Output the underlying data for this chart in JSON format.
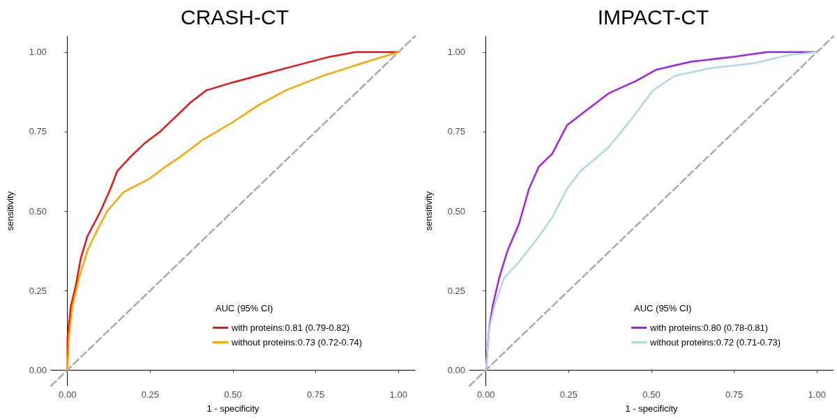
{
  "chart_data": [
    {
      "type": "line",
      "title": "CRASH-CT",
      "xlabel": "1 - specificity",
      "ylabel": "sensitivity",
      "legend_title": "AUC (95% CI)",
      "legend": "bottom right",
      "grid": false,
      "marker": "none",
      "xlim": [
        -0.05,
        1.05
      ],
      "ylim": [
        -0.05,
        1.05
      ],
      "xticks": [
        {
          "value": 0,
          "label": "0.00"
        },
        {
          "value": 0.25,
          "label": "0.25"
        },
        {
          "value": 0.5,
          "label": "0.50"
        },
        {
          "value": 0.75,
          "label": "0.75"
        },
        {
          "value": 1,
          "label": "1.00"
        }
      ],
      "yticks": [
        {
          "value": 0,
          "label": "0.00"
        },
        {
          "value": 0.25,
          "label": "0.25"
        },
        {
          "value": 0.5,
          "label": "0.50"
        },
        {
          "value": 0.75,
          "label": "0.75"
        },
        {
          "value": 1,
          "label": "1.00"
        }
      ],
      "series": [
        {
          "name": "with proteins:0.81 (0.79-0.82)",
          "color": "#ee1111",
          "line_style": "solid",
          "x": [
            0,
            0,
            0.01,
            0.025,
            0.04,
            0.06,
            0.08,
            0.1,
            0.13,
            0.15,
            0.19,
            0.235,
            0.28,
            0.33,
            0.37,
            0.42,
            0.5,
            0.59,
            0.68,
            0.79,
            0.87,
            1
          ],
          "values": [
            0,
            0.1,
            0.2,
            0.265,
            0.35,
            0.42,
            0.46,
            0.5,
            0.57,
            0.625,
            0.67,
            0.715,
            0.75,
            0.8,
            0.84,
            0.88,
            0.905,
            0.93,
            0.955,
            0.985,
            1,
            1
          ]
        },
        {
          "name": "without proteins:0.73 (0.72-0.74)",
          "color": "#ffa500",
          "line_style": "solid",
          "x": [
            0,
            0.005,
            0.015,
            0.035,
            0.06,
            0.09,
            0.12,
            0.17,
            0.245,
            0.29,
            0.34,
            0.41,
            0.5,
            0.58,
            0.66,
            0.77,
            0.89,
            1
          ],
          "values": [
            0,
            0.11,
            0.2,
            0.29,
            0.375,
            0.44,
            0.5,
            0.56,
            0.6,
            0.635,
            0.67,
            0.725,
            0.78,
            0.835,
            0.88,
            0.925,
            0.965,
            1
          ]
        },
        {
          "color": "#a9a9a9",
          "line_style": "dashed",
          "x": [
            -0.05,
            1.05
          ],
          "values": [
            -0.05,
            1.05
          ]
        }
      ]
    },
    {
      "type": "line",
      "title": "IMPACT-CT",
      "xlabel": "1 - specificity",
      "ylabel": "sensitivity",
      "legend_title": "AUC (95% CI)",
      "legend": "bottom right",
      "grid": false,
      "marker": "none",
      "xlim": [
        -0.05,
        1.05
      ],
      "ylim": [
        -0.05,
        1.05
      ],
      "xticks": [
        {
          "value": 0,
          "label": "0.00"
        },
        {
          "value": 0.25,
          "label": "0.25"
        },
        {
          "value": 0.5,
          "label": "0.50"
        },
        {
          "value": 0.75,
          "label": "0.75"
        },
        {
          "value": 1,
          "label": "1.00"
        }
      ],
      "yticks": [
        {
          "value": 0,
          "label": "0.00"
        },
        {
          "value": 0.25,
          "label": "0.25"
        },
        {
          "value": 0.5,
          "label": "0.50"
        },
        {
          "value": 0.75,
          "label": "0.75"
        },
        {
          "value": 1,
          "label": "1.00"
        }
      ],
      "series": [
        {
          "name": "with proteins:0.80 (0.78-0.81)",
          "color": "#a020f0",
          "line_style": "solid",
          "x": [
            0,
            0.01,
            0.02,
            0.04,
            0.065,
            0.1,
            0.13,
            0.16,
            0.2,
            0.245,
            0.295,
            0.37,
            0.455,
            0.515,
            0.62,
            0.745,
            0.85,
            1
          ],
          "values": [
            0,
            0.135,
            0.2,
            0.29,
            0.375,
            0.46,
            0.57,
            0.64,
            0.68,
            0.77,
            0.81,
            0.87,
            0.91,
            0.945,
            0.97,
            0.985,
            1,
            1
          ]
        },
        {
          "name": "without proteins:0.72 (0.71-0.73)",
          "color": "#add8e6",
          "line_style": "solid",
          "x": [
            0,
            0.01,
            0.025,
            0.055,
            0.1,
            0.16,
            0.2,
            0.245,
            0.285,
            0.37,
            0.44,
            0.505,
            0.57,
            0.68,
            0.81,
            0.91,
            1
          ],
          "values": [
            0,
            0.13,
            0.2,
            0.29,
            0.34,
            0.42,
            0.48,
            0.57,
            0.625,
            0.7,
            0.79,
            0.88,
            0.925,
            0.95,
            0.965,
            0.99,
            1
          ]
        },
        {
          "color": "#a9a9a9",
          "line_style": "dashed",
          "x": [
            -0.05,
            1.05
          ],
          "values": [
            -0.05,
            1.05
          ]
        }
      ]
    }
  ]
}
